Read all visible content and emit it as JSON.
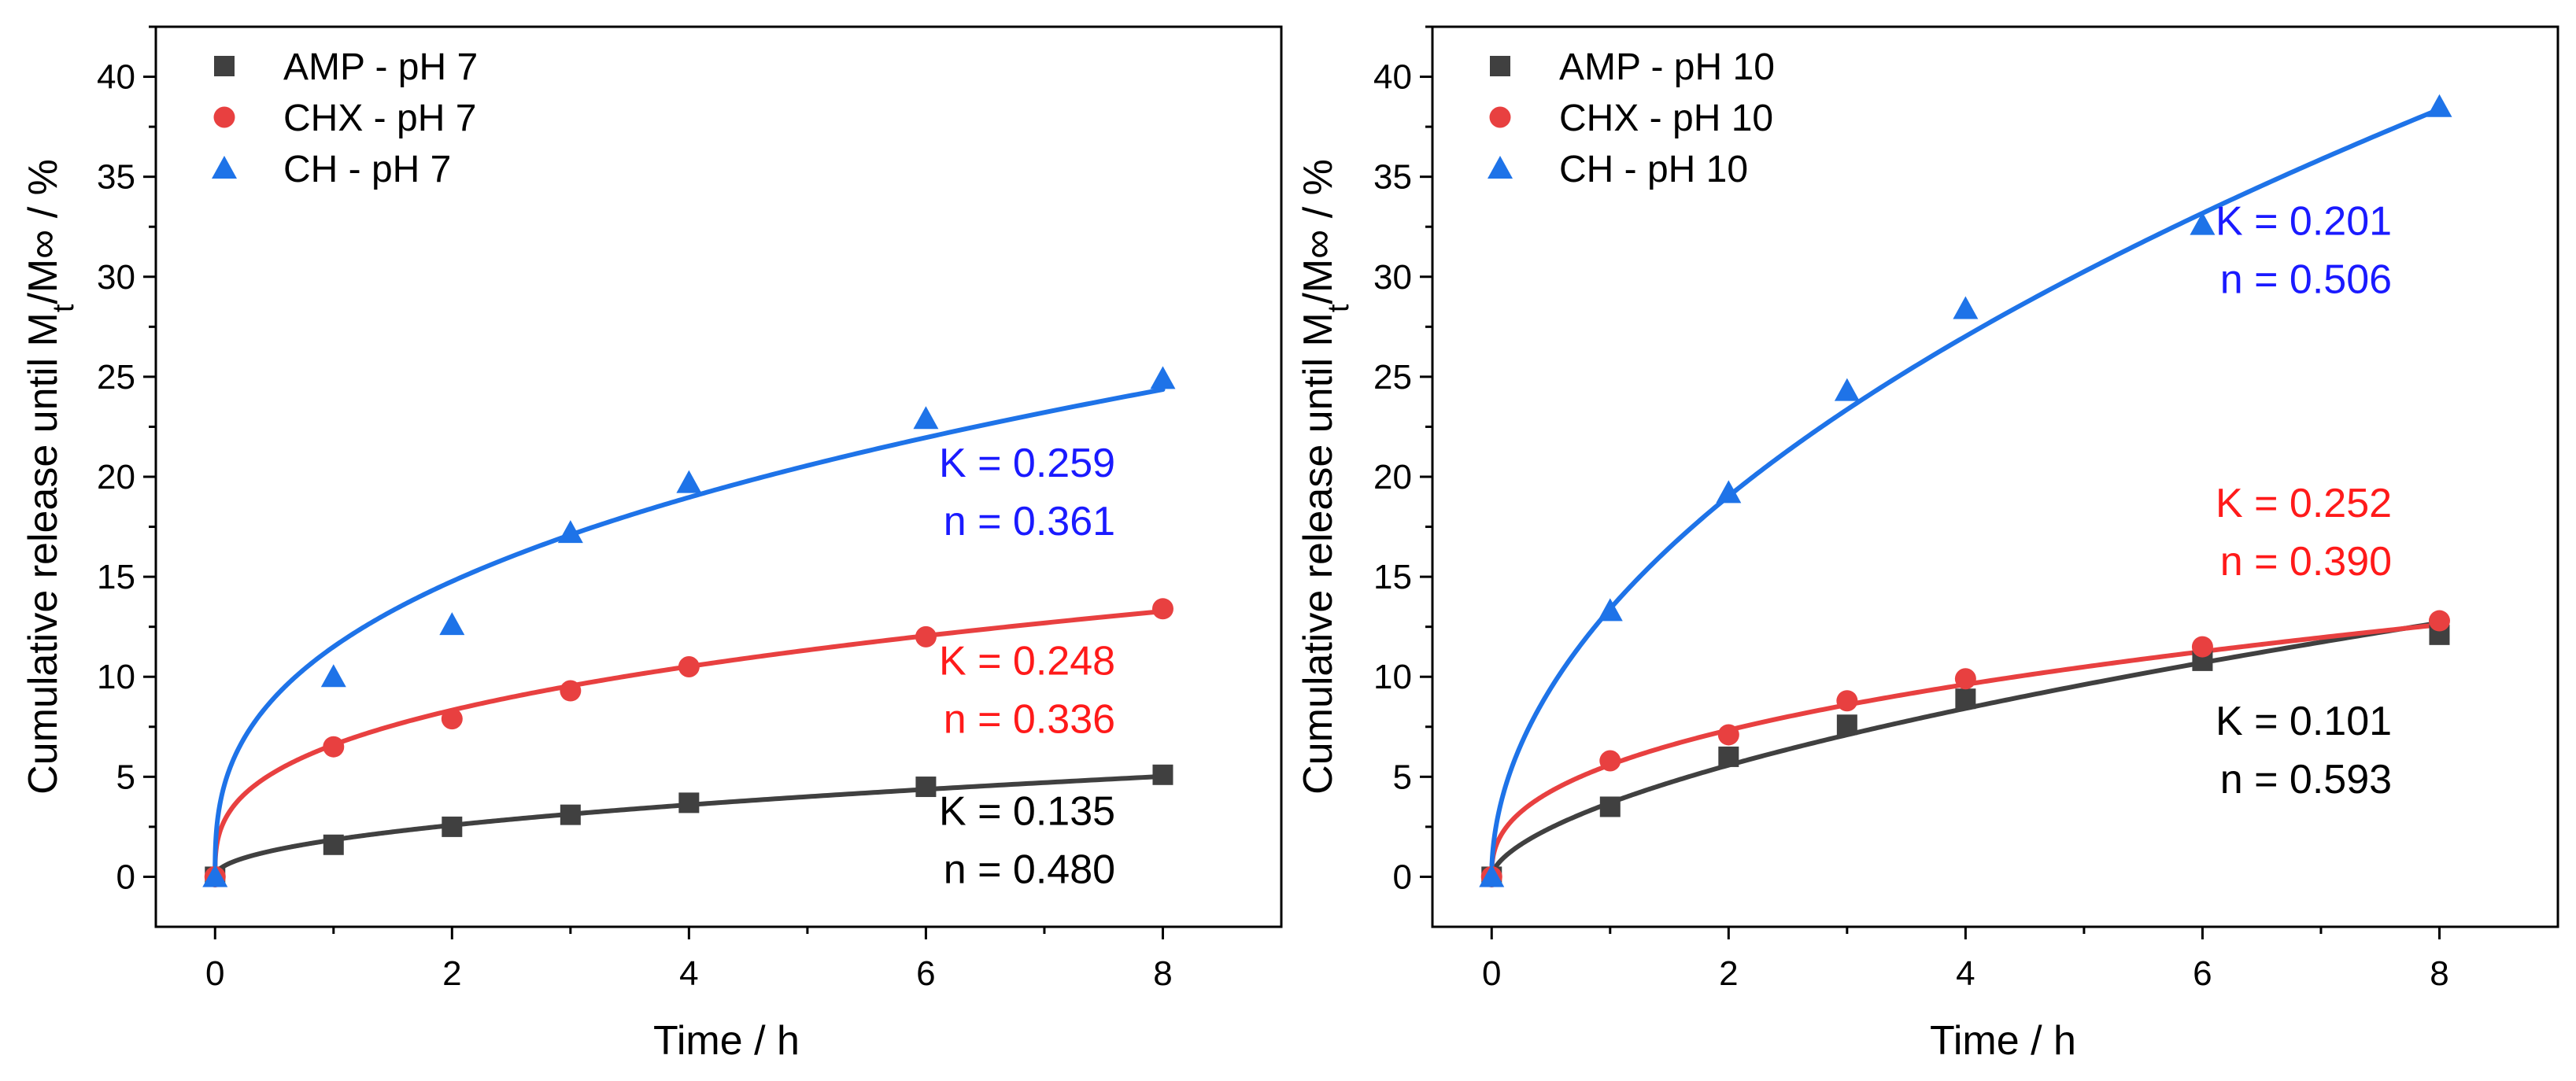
{
  "chart_data": [
    {
      "type": "scatter",
      "xlabel": "Time / h",
      "ylabel": "Cumulative release until Mt/M∞ / %",
      "ylabel_parts": {
        "before_sub": "Cumulative release until M",
        "sub": "t",
        "after_sub": "/M∞  / %"
      },
      "xlim": [
        -0.5,
        9
      ],
      "ylim": [
        -2.5,
        42.5
      ],
      "xticks": [
        0,
        2,
        4,
        6,
        8
      ],
      "yticks": [
        0,
        5,
        10,
        15,
        20,
        25,
        30,
        35,
        40
      ],
      "grid": false,
      "legend_placement": "top-left",
      "series": [
        {
          "name": "AMP - pH 7",
          "marker": "square",
          "color": "#404040",
          "x": [
            0,
            1,
            2,
            3,
            4,
            6,
            8
          ],
          "y": [
            0,
            1.6,
            2.5,
            3.1,
            3.7,
            4.5,
            5.1
          ],
          "fit": {
            "K": 0.135,
            "n": 0.48,
            "scale": 1.85
          }
        },
        {
          "name": "CHX - pH 7",
          "marker": "circle",
          "color": "#e84040",
          "x": [
            0,
            1,
            2,
            3,
            4,
            6,
            8
          ],
          "y": [
            0,
            6.5,
            7.9,
            9.3,
            10.5,
            12.0,
            13.4
          ],
          "fit": {
            "K": 0.248,
            "n": 0.336,
            "scale": 6.6
          }
        },
        {
          "name": "CH - pH 7",
          "marker": "triangle",
          "color": "#1e73e8",
          "x": [
            0,
            1,
            2,
            3,
            4,
            6,
            8
          ],
          "y": [
            0,
            10.0,
            12.6,
            17.2,
            19.7,
            22.9,
            24.9
          ],
          "fit": {
            "K": 0.259,
            "n": 0.361,
            "scale": 11.5
          }
        }
      ],
      "annotations": [
        {
          "lines": [
            "K = 0.259",
            "n = 0.361"
          ],
          "color": "#1a1aff",
          "x": 7.2,
          "y": 20.0
        },
        {
          "lines": [
            "K = 0.248",
            "n = 0.336"
          ],
          "color": "#ff1a1a",
          "x": 7.2,
          "y": 10.1
        },
        {
          "lines": [
            "K = 0.135",
            "n = 0.480"
          ],
          "color": "#000000",
          "x": 7.2,
          "y": 2.6
        }
      ]
    },
    {
      "type": "scatter",
      "xlabel": "Time / h",
      "ylabel": "Cumulative release until Mt/M∞ / %",
      "ylabel_parts": {
        "before_sub": "Cumulative release until M",
        "sub": "t",
        "after_sub": "/M∞  / %"
      },
      "xlim": [
        -0.5,
        9
      ],
      "ylim": [
        -2.5,
        42.5
      ],
      "xticks": [
        0,
        2,
        4,
        6,
        8
      ],
      "yticks": [
        0,
        5,
        10,
        15,
        20,
        25,
        30,
        35,
        40
      ],
      "grid": false,
      "legend_placement": "top-left",
      "series": [
        {
          "name": "AMP - pH 10",
          "marker": "square",
          "color": "#404040",
          "x": [
            0,
            1,
            2,
            3,
            4,
            6,
            8
          ],
          "y": [
            0,
            3.5,
            6.0,
            7.6,
            8.9,
            10.8,
            12.1
          ],
          "fit": {
            "K": 0.101,
            "n": 0.593,
            "scale": 3.7
          }
        },
        {
          "name": "CHX - pH 10",
          "marker": "circle",
          "color": "#e84040",
          "x": [
            0,
            1,
            2,
            3,
            4,
            6,
            8
          ],
          "y": [
            0,
            5.8,
            7.1,
            8.8,
            9.9,
            11.5,
            12.8
          ],
          "fit": {
            "K": 0.252,
            "n": 0.39,
            "scale": 5.6
          }
        },
        {
          "name": "CH - pH 10",
          "marker": "triangle",
          "color": "#1e73e8",
          "x": [
            0,
            1,
            2,
            3,
            4,
            6,
            8
          ],
          "y": [
            0,
            13.3,
            19.2,
            24.3,
            28.4,
            32.6,
            38.5
          ],
          "fit": {
            "K": 0.201,
            "n": 0.506,
            "scale": 13.4
          }
        }
      ],
      "annotations": [
        {
          "lines": [
            "K = 0.201",
            "n = 0.506"
          ],
          "color": "#1a1aff",
          "x": 7.2,
          "y": 32.1
        },
        {
          "lines": [
            "K = 0.252",
            "n = 0.390"
          ],
          "color": "#ff1a1a",
          "x": 7.2,
          "y": 18.0
        },
        {
          "lines": [
            "K = 0.101",
            "n = 0.593"
          ],
          "color": "#000000",
          "x": 7.2,
          "y": 7.1
        }
      ]
    }
  ]
}
